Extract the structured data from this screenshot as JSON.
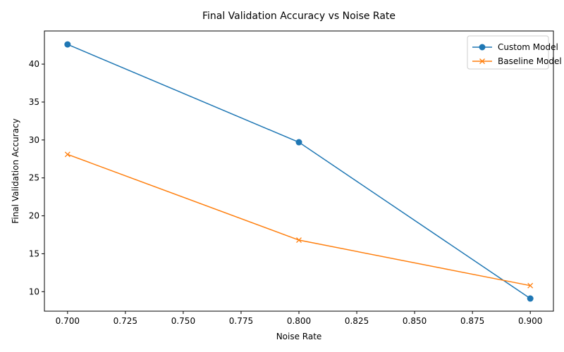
{
  "chart_data": {
    "type": "line",
    "title": "Final Validation Accuracy vs Noise Rate",
    "xlabel": "Noise Rate",
    "ylabel": "Final Validation Accuracy",
    "x": [
      0.7,
      0.8,
      0.9
    ],
    "xlim": [
      0.69,
      0.91
    ],
    "ylim": [
      7.43,
      44.37
    ],
    "xticks": [
      "0.700",
      "0.725",
      "0.750",
      "0.775",
      "0.800",
      "0.825",
      "0.850",
      "0.875",
      "0.900"
    ],
    "yticks": [
      "10",
      "15",
      "20",
      "25",
      "30",
      "35",
      "40"
    ],
    "grid": false,
    "legend_position": "top-right",
    "series": [
      {
        "name": "Custom Model",
        "values": [
          42.6,
          29.7,
          9.1
        ],
        "color": "#1f77b4",
        "marker": "circle"
      },
      {
        "name": "Baseline Model",
        "values": [
          28.1,
          16.8,
          10.8
        ],
        "color": "#ff7f0e",
        "marker": "x"
      }
    ]
  }
}
